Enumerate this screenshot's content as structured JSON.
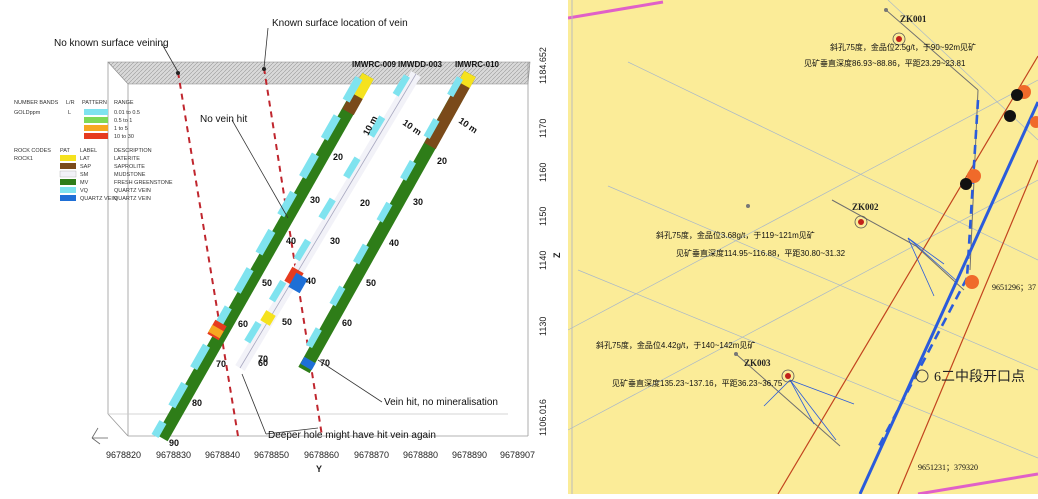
{
  "left": {
    "annotations": {
      "no_known_surface": "No known surface veining",
      "known_surface": "Known surface location of vein",
      "no_vein_hit": "No vein hit",
      "vein_hit": "Vein hit, no mineralisation",
      "deeper_hole": "Deeper hole might have hit vein again"
    },
    "holes": [
      "IMWRC-009",
      "IMWDD-003",
      "IMWRC-010"
    ],
    "depth_labels": {
      "hole1": [
        "10 m",
        "20",
        "30",
        "40",
        "50",
        "60",
        "70",
        "80",
        "90"
      ],
      "hole2": [
        "10 m",
        "20",
        "30",
        "40",
        "50",
        "60",
        "70"
      ],
      "hole3": [
        "10 m",
        "20",
        "30",
        "40",
        "50",
        "60",
        "70"
      ]
    },
    "x_axis": {
      "title": "Y",
      "ticks": [
        "9678820",
        "9678830",
        "9678840",
        "9678850",
        "9678860",
        "9678870",
        "9678880",
        "9678890",
        "9678907"
      ]
    },
    "z_axis": {
      "title": "Z",
      "ticks": [
        "1184.652",
        "1170",
        "1160",
        "1150",
        "1140",
        "1130",
        "1106.016"
      ]
    },
    "legend": {
      "bands_header": [
        "NUMBER BANDS",
        "L/R",
        "PATTERN",
        "RANGE"
      ],
      "bands_field": "GOLDppm",
      "bands_lr": "L",
      "bands": [
        {
          "range": "0.01 to 0.5",
          "color": "#7fe3ef"
        },
        {
          "range": "0.5 to 1",
          "color": "#7ed957"
        },
        {
          "range": "1 to 5",
          "color": "#f6a821"
        },
        {
          "range": "10 to 30",
          "color": "#e63b1f"
        }
      ],
      "rocks_header": [
        "ROCK CODES",
        "PAT",
        "LABEL",
        "DESCRIPTION"
      ],
      "rocks_field": "ROCK1",
      "rocks": [
        {
          "label": "LAT",
          "desc": "LATERITE",
          "color": "#f5e21e"
        },
        {
          "label": "SAP",
          "desc": "SAPROLITE",
          "color": "#7a4a1a"
        },
        {
          "label": "SM",
          "desc": "MUDSTONE",
          "color": "#f2f2f8"
        },
        {
          "label": "MV",
          "desc": "FRESH GREENSTONE",
          "color": "#2e7d18"
        },
        {
          "label": "VQ",
          "desc": "QUARTZ VEIN",
          "color": "#7fe3ef"
        },
        {
          "label": "QUARTZ VEIN",
          "desc": "QUARTZ VEIN",
          "color": "#1e6fd6"
        }
      ]
    }
  },
  "right": {
    "holes": [
      "ZK001",
      "ZK002",
      "ZK003"
    ],
    "zk001_notes": [
      "斜孔75度，金品位2.5g/t，于90~92m见矿",
      "见矿垂直深度86.93~88.86，平距23.29~23.81"
    ],
    "zk002_notes": [
      "斜孔75度，金品位3.68g/t，于119~121m见矿",
      "见矿垂直深度114.95~116.88，平距30.80~31.32"
    ],
    "zk003_notes": [
      "斜孔75度，金品位4.42g/t，于140~142m见矿",
      "见矿垂直深度135.23~137.16，平距36.23~36.75"
    ],
    "point_label": "6二中段开口点",
    "coords": [
      "9651296；37",
      "9651231；379320"
    ]
  }
}
